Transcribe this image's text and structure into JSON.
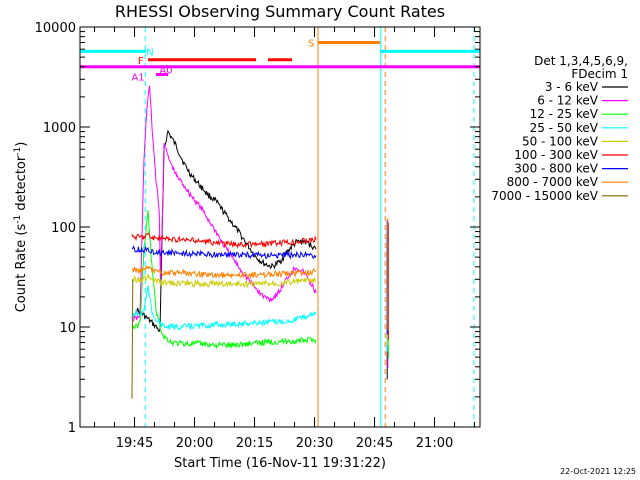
{
  "chart_data": {
    "type": "line",
    "title": "RHESSI Observing Summary Count Rates",
    "xlabel": "Start Time (16-Nov-11 19:31:22)",
    "ylabel_main": "Count Rate (s",
    "ylabel_sup1": "-1",
    "ylabel_mid": " detector",
    "ylabel_sup2": "-1",
    "ylabel_end": ")",
    "y_scale": "log",
    "ylim": [
      1,
      10000
    ],
    "xlim_minutes": [
      0,
      100
    ],
    "x_tick_labels": [
      "19:45",
      "20:00",
      "20:15",
      "20:30",
      "20:45",
      "21:00"
    ],
    "x_tick_minutes": [
      13.63,
      28.63,
      43.63,
      58.63,
      73.63,
      88.63
    ],
    "y_tick_labels": [
      "1",
      "10",
      "100",
      "1000",
      "10000"
    ],
    "y_tick_values": [
      1,
      10,
      100,
      1000,
      10000
    ],
    "legend_title_1": "Det 1,3,4,5,6,9,",
    "legend_title_2": "FDecim 1",
    "timestamp": "22-Oct-2021 12:25",
    "series": [
      {
        "name": "3 - 6 keV",
        "color": "#000000",
        "points": [
          [
            14,
            15
          ],
          [
            15,
            14
          ],
          [
            16,
            13
          ],
          [
            17,
            12
          ],
          [
            18,
            11
          ],
          [
            19,
            10
          ],
          [
            20,
            9
          ],
          [
            21,
            600
          ],
          [
            22,
            900
          ],
          [
            24,
            650
          ],
          [
            26,
            430
          ],
          [
            28,
            320
          ],
          [
            30,
            260
          ],
          [
            32,
            210
          ],
          [
            34,
            180
          ],
          [
            36,
            140
          ],
          [
            38,
            110
          ],
          [
            40,
            85
          ],
          [
            42,
            65
          ],
          [
            44,
            50
          ],
          [
            46,
            43
          ],
          [
            48,
            40
          ],
          [
            50,
            45
          ],
          [
            52,
            58
          ],
          [
            54,
            70
          ],
          [
            56,
            72
          ],
          [
            58,
            65
          ],
          [
            59,
            60
          ]
        ]
      },
      {
        "name": "6 - 12 keV",
        "color": "#ff00ff",
        "points": [
          [
            13,
            12
          ],
          [
            14,
            12
          ],
          [
            15,
            13
          ],
          [
            16,
            500
          ],
          [
            16.7,
            1500
          ],
          [
            17.4,
            2600
          ],
          [
            18,
            1000
          ],
          [
            19,
            300
          ],
          [
            19.8,
            150
          ],
          [
            20.1,
            30
          ],
          [
            20.6,
            120
          ],
          [
            21,
            700
          ],
          [
            22,
            500
          ],
          [
            24,
            330
          ],
          [
            26,
            260
          ],
          [
            28,
            200
          ],
          [
            30,
            160
          ],
          [
            32,
            120
          ],
          [
            34,
            90
          ],
          [
            36,
            65
          ],
          [
            38,
            50
          ],
          [
            40,
            38
          ],
          [
            42,
            30
          ],
          [
            44,
            24
          ],
          [
            46,
            20
          ],
          [
            48,
            19
          ],
          [
            50,
            23
          ],
          [
            52,
            32
          ],
          [
            54,
            40
          ],
          [
            56,
            35
          ],
          [
            58,
            26
          ],
          [
            59,
            22
          ]
        ]
      },
      {
        "name": "12 - 25 keV",
        "color": "#00ff00",
        "points": [
          [
            13,
            10
          ],
          [
            14,
            10
          ],
          [
            15,
            11
          ],
          [
            16,
            60
          ],
          [
            17,
            140
          ],
          [
            18,
            40
          ],
          [
            19,
            15
          ],
          [
            20,
            10
          ],
          [
            21,
            8
          ],
          [
            23,
            7
          ],
          [
            26,
            6.8
          ],
          [
            30,
            6.8
          ],
          [
            34,
            6.6
          ],
          [
            38,
            6.6
          ],
          [
            42,
            6.8
          ],
          [
            46,
            7
          ],
          [
            50,
            7.2
          ],
          [
            54,
            7.2
          ],
          [
            58,
            7.5
          ],
          [
            59,
            7.5
          ]
        ]
      },
      {
        "name": "25 - 50 keV",
        "color": "#00ffff",
        "points": [
          [
            13,
            12
          ],
          [
            14,
            14
          ],
          [
            15,
            13
          ],
          [
            16,
            15
          ],
          [
            17,
            25
          ],
          [
            18,
            14
          ],
          [
            19,
            12
          ],
          [
            20,
            11
          ],
          [
            21,
            10
          ],
          [
            24,
            10
          ],
          [
            28,
            10.2
          ],
          [
            32,
            10.4
          ],
          [
            36,
            10.6
          ],
          [
            40,
            10.8
          ],
          [
            44,
            11
          ],
          [
            48,
            11.2
          ],
          [
            52,
            11.5
          ],
          [
            56,
            12.5
          ],
          [
            59,
            14
          ]
        ]
      },
      {
        "name": "50 - 100 keV",
        "color": "#cccc00",
        "points": [
          [
            13,
            30
          ],
          [
            16,
            30
          ],
          [
            17,
            32
          ],
          [
            18,
            29
          ],
          [
            20,
            28
          ],
          [
            24,
            27.5
          ],
          [
            28,
            27
          ],
          [
            32,
            27
          ],
          [
            36,
            27
          ],
          [
            40,
            27
          ],
          [
            44,
            27
          ],
          [
            48,
            27.5
          ],
          [
            52,
            28
          ],
          [
            56,
            29
          ],
          [
            59,
            29
          ]
        ]
      },
      {
        "name": "100 - 300 keV",
        "color": "#ff0000",
        "points": [
          [
            13,
            80
          ],
          [
            16,
            80
          ],
          [
            17,
            84
          ],
          [
            18,
            78
          ],
          [
            20,
            77
          ],
          [
            24,
            75
          ],
          [
            28,
            73
          ],
          [
            32,
            71
          ],
          [
            36,
            68
          ],
          [
            40,
            67
          ],
          [
            44,
            67
          ],
          [
            48,
            68
          ],
          [
            52,
            70
          ],
          [
            56,
            73
          ],
          [
            59,
            75
          ]
        ]
      },
      {
        "name": "300 - 800 keV",
        "color": "#0000ff",
        "points": [
          [
            13,
            60
          ],
          [
            16,
            59
          ],
          [
            17,
            60
          ],
          [
            18,
            57
          ],
          [
            20,
            56
          ],
          [
            24,
            55
          ],
          [
            28,
            54
          ],
          [
            32,
            53
          ],
          [
            36,
            53
          ],
          [
            40,
            53
          ],
          [
            44,
            52
          ],
          [
            48,
            52
          ],
          [
            52,
            52
          ],
          [
            56,
            53
          ],
          [
            59,
            52
          ]
        ]
      },
      {
        "name": "800 - 7000 keV",
        "color": "#ff8000",
        "points": [
          [
            13,
            37
          ],
          [
            16,
            37
          ],
          [
            17,
            39
          ],
          [
            18,
            36
          ],
          [
            20,
            35
          ],
          [
            24,
            35
          ],
          [
            28,
            34
          ],
          [
            32,
            33
          ],
          [
            36,
            33
          ],
          [
            40,
            33
          ],
          [
            44,
            33
          ],
          [
            48,
            34
          ],
          [
            52,
            34
          ],
          [
            56,
            35
          ],
          [
            59,
            36
          ]
        ]
      },
      {
        "name": "7000 - 15000 keV",
        "color": "#806600",
        "points": [
          [
            13,
            2
          ],
          [
            13.2,
            30
          ]
        ]
      }
    ],
    "gap_spike": {
      "minute": 76.8,
      "values": [
        3,
        130
      ]
    },
    "flags": [
      {
        "label": "N",
        "color": "#00ffff",
        "row_value": 5700,
        "segments": [
          [
            0,
            16.5
          ],
          [
            75,
            100
          ]
        ]
      },
      {
        "label": "F",
        "color": "#ff0000",
        "row_value": 4700,
        "segments": [
          [
            17,
            44
          ],
          [
            47,
            53
          ]
        ]
      },
      {
        "label": "",
        "color": "#ff00ff",
        "row_value": 4000,
        "segments": [
          [
            0,
            100
          ]
        ]
      },
      {
        "label": "A0",
        "color": "#ff00ff",
        "row_value": 3350,
        "segments": [
          [
            19,
            22
          ]
        ]
      },
      {
        "label": "A1",
        "color": "#ff00ff",
        "row_value": 3350,
        "segments": []
      },
      {
        "label": "S",
        "color": "#ff8000",
        "row_value": 7000,
        "segments": [
          [
            59.5,
            75
          ]
        ]
      }
    ],
    "vertical_markers": [
      {
        "minute": 0,
        "color": "#00ffff",
        "style": "solid"
      },
      {
        "minute": 16.3,
        "color": "#00ffff",
        "style": "dashed"
      },
      {
        "minute": 59.5,
        "color": "#ff8000",
        "style": "solid"
      },
      {
        "minute": 75.2,
        "color": "#00ffff",
        "style": "solid"
      },
      {
        "minute": 76.3,
        "color": "#ff8000",
        "style": "dashed"
      },
      {
        "minute": 98.5,
        "color": "#00ffff",
        "style": "dashed"
      }
    ]
  }
}
